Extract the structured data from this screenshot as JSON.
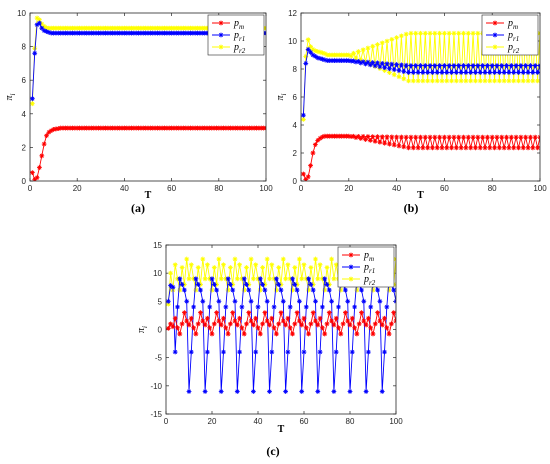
{
  "chart_data": [
    {
      "type": "line",
      "panel_label": "(a)",
      "xlabel": "T",
      "ylabel": "π",
      "ylabel_sub": "i",
      "xlim": [
        0,
        100
      ],
      "ylim": [
        0,
        10
      ],
      "xticks": [
        0,
        20,
        40,
        60,
        80,
        100
      ],
      "yticks": [
        0,
        2,
        4,
        6,
        8,
        10
      ],
      "legend_position": "top-right",
      "x_start": 1,
      "x_end": 100,
      "series": [
        {
          "name": "p",
          "sub": "m",
          "color": "#ff0000",
          "marker": "star",
          "prefix": [
            0.5,
            0.08,
            0.2,
            0.8,
            1.5,
            2.2,
            2.7,
            2.9,
            3.0,
            3.07,
            3.1,
            3.12
          ],
          "pattern": [
            3.15
          ]
        },
        {
          "name": "p",
          "sub": "r1",
          "color": "#0000ff",
          "marker": "star",
          "prefix": [
            4.9,
            7.6,
            9.3,
            9.4,
            9.1,
            8.95,
            8.9,
            8.85
          ],
          "pattern": [
            8.8
          ]
        },
        {
          "name": "p",
          "sub": "r2",
          "color": "#ffff00",
          "marker": "star",
          "prefix": [
            4.6,
            7.9,
            9.7,
            9.6,
            9.35,
            9.2,
            9.12,
            9.1
          ],
          "pattern": [
            9.1
          ]
        }
      ]
    },
    {
      "type": "line",
      "panel_label": "(b)",
      "xlabel": "T",
      "ylabel": "π",
      "ylabel_sub": "i",
      "xlim": [
        0,
        100
      ],
      "ylim": [
        0,
        12
      ],
      "xticks": [
        0,
        20,
        40,
        60,
        80,
        100
      ],
      "yticks": [
        0,
        2,
        4,
        6,
        8,
        10,
        12
      ],
      "legend_position": "top-right",
      "x_start": 1,
      "x_end": 100,
      "series": [
        {
          "name": "p",
          "sub": "m",
          "color": "#ff0000",
          "marker": "star",
          "prefix": [
            0.5,
            0.1,
            0.3,
            1.1,
            2.0,
            2.6,
            2.9,
            3.05,
            3.15,
            3.2
          ],
          "settle": 3.2,
          "osc_start": 20,
          "osc_full": 45,
          "osc_amp": 0.38,
          "osc_center": 2.75
        },
        {
          "name": "p",
          "sub": "r1",
          "color": "#0000ff",
          "marker": "star",
          "prefix": [
            4.7,
            8.4,
            9.4,
            9.2,
            9.0,
            8.9,
            8.8,
            8.75,
            8.7,
            8.65
          ],
          "settle": 8.6,
          "osc_start": 20,
          "osc_full": 45,
          "osc_amp": 0.25,
          "osc_center": 8.0
        },
        {
          "name": "p",
          "sub": "r2",
          "color": "#ffff00",
          "marker": "star",
          "prefix": [
            4.4,
            8.9,
            10.1,
            9.6,
            9.4,
            9.3,
            9.25,
            9.2,
            9.15,
            9.1
          ],
          "settle": 9.0,
          "osc_start": 20,
          "osc_full": 45,
          "osc_amp": 1.7,
          "osc_center": 8.85
        }
      ]
    },
    {
      "type": "line",
      "panel_label": "(c)",
      "xlabel": "T",
      "ylabel": "π",
      "ylabel_sub": "i",
      "xlim": [
        0,
        100
      ],
      "ylim": [
        -15,
        15
      ],
      "xticks": [
        0,
        20,
        40,
        60,
        80,
        100
      ],
      "yticks": [
        -15,
        -10,
        -5,
        0,
        5,
        10,
        15
      ],
      "legend_position": "top-right",
      "x_start": 1,
      "x_end": 100,
      "series": [
        {
          "name": "p",
          "sub": "m",
          "color": "#ff0000",
          "marker": "star",
          "prefix": [
            0.2,
            1.0,
            0.5
          ],
          "pattern": [
            2.0,
            0.3,
            -0.8,
            1.0,
            3.0,
            1.5,
            0.8
          ]
        },
        {
          "name": "p",
          "sub": "r1",
          "color": "#0000ff",
          "marker": "star",
          "prefix": [
            5.0,
            7.8,
            7.5
          ],
          "pattern": [
            -4.0,
            4.0,
            9.0,
            8.0,
            7.0,
            5.0,
            -11.0
          ]
        },
        {
          "name": "p",
          "sub": "r2",
          "color": "#ffff00",
          "marker": "star",
          "prefix": [
            4.5,
            10.0,
            7.0
          ],
          "pattern": [
            11.5,
            9.0,
            7.0,
            11.0,
            8.0,
            12.5,
            9.0
          ]
        }
      ]
    }
  ]
}
